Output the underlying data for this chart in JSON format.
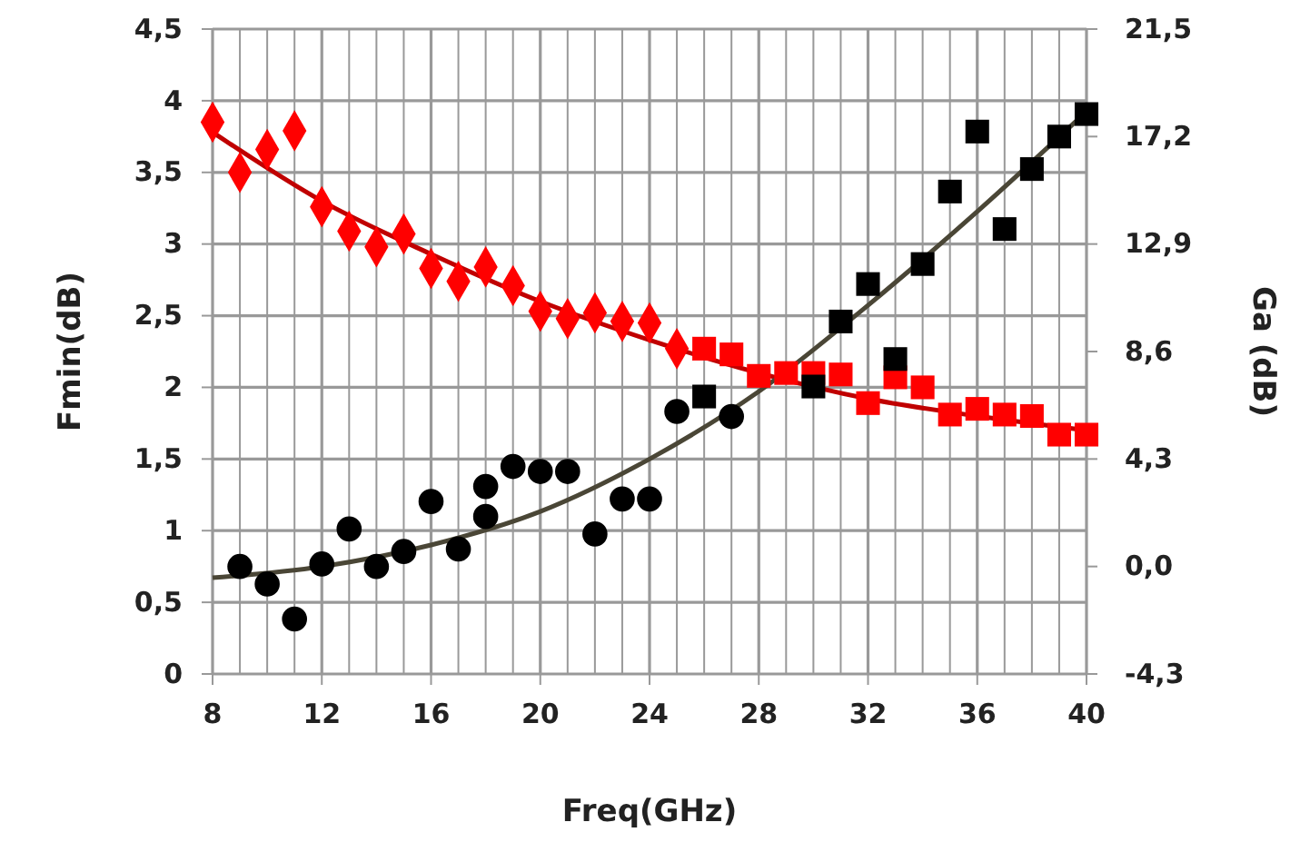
{
  "chart_data": {
    "type": "scatter",
    "xlabel": "Freq(GHz)",
    "ylabel": "Fmin(dB)",
    "y2label": "Ga (dB)",
    "xlim": [
      8,
      40
    ],
    "ylim": [
      0,
      4.5
    ],
    "y2lim": [
      -4.3,
      21.5
    ],
    "xticks": [
      8,
      {
        "value": 9,
        "label": null
      },
      {
        "value": 10,
        "label": null
      },
      {
        "value": 11,
        "label": null
      },
      12,
      {
        "value": 13,
        "label": null
      },
      {
        "value": 14,
        "label": null
      },
      {
        "value": 15,
        "label": null
      },
      16,
      {
        "value": 17,
        "label": null
      },
      {
        "value": 18,
        "label": null
      },
      {
        "value": 19,
        "label": null
      },
      20,
      {
        "value": 21,
        "label": null
      },
      {
        "value": 22,
        "label": null
      },
      {
        "value": 23,
        "label": null
      },
      24,
      {
        "value": 25,
        "label": null
      },
      {
        "value": 26,
        "label": null
      },
      {
        "value": 27,
        "label": null
      },
      28,
      {
        "value": 29,
        "label": null
      },
      {
        "value": 30,
        "label": null
      },
      {
        "value": 31,
        "label": null
      },
      32,
      {
        "value": 33,
        "label": null
      },
      {
        "value": 34,
        "label": null
      },
      {
        "value": 35,
        "label": null
      },
      36,
      {
        "value": 37,
        "label": null
      },
      {
        "value": 38,
        "label": null
      },
      {
        "value": 39,
        "label": null
      },
      40
    ],
    "yticks": [
      0,
      {
        "value": 0.5,
        "label": "0,5"
      },
      1,
      {
        "value": 1.5,
        "label": "1,5"
      },
      2,
      {
        "value": 2.5,
        "label": "2,5"
      },
      3,
      {
        "value": 3.5,
        "label": "3,5"
      },
      4,
      {
        "value": 4.5,
        "label": "4,5"
      }
    ],
    "y2ticks": [
      {
        "value": -4.3,
        "label": "-4,3"
      },
      {
        "value": 0,
        "label": "0,0"
      },
      {
        "value": 4.3,
        "label": "4,3"
      },
      {
        "value": 8.6,
        "label": "8,6"
      },
      {
        "value": 12.9,
        "label": "12,9"
      },
      {
        "value": 17.2,
        "label": "17,2"
      },
      {
        "value": 21.5,
        "label": "21,5"
      }
    ],
    "grid": true,
    "series": [
      {
        "marker": "diamond",
        "color": "#ff0000",
        "x": [
          8,
          9,
          10,
          11,
          12,
          13,
          14,
          15,
          16,
          17,
          18,
          19,
          20,
          21,
          22,
          23,
          24,
          25
        ],
        "values": [
          3.85,
          3.5,
          3.66,
          3.79,
          3.26,
          3.09,
          2.98,
          3.07,
          2.83,
          2.74,
          2.84,
          2.71,
          2.53,
          2.48,
          2.52,
          2.46,
          2.45,
          2.27
        ]
      },
      {
        "marker": "square",
        "color": "#ff0000",
        "x": [
          26,
          27,
          28,
          29,
          30,
          31,
          32,
          33,
          34,
          35,
          36,
          37,
          38,
          39,
          40
        ],
        "values": [
          2.27,
          2.23,
          2.08,
          2.1,
          2.1,
          2.09,
          1.89,
          2.07,
          2.0,
          1.81,
          1.85,
          1.81,
          1.8,
          1.67,
          1.67
        ]
      },
      {
        "type": "line",
        "color": "#c00000",
        "x": [
          8,
          12,
          16,
          20,
          24,
          28,
          32,
          36,
          40
        ],
        "values": [
          3.78,
          3.3,
          2.93,
          2.6,
          2.33,
          2.1,
          1.92,
          1.8,
          1.7
        ]
      },
      {
        "marker": "circle",
        "axis": "y2",
        "color": "#000000",
        "x": [
          9,
          10,
          11,
          12,
          13,
          14,
          15,
          16,
          17,
          18,
          18,
          19,
          20,
          21,
          22,
          23,
          24,
          25,
          27
        ],
        "values": [
          0.0,
          -0.7,
          -2.1,
          0.1,
          1.5,
          0.0,
          0.6,
          2.6,
          0.7,
          2.0,
          3.2,
          4.0,
          3.8,
          3.8,
          1.3,
          2.7,
          2.7,
          6.2,
          6.0
        ]
      },
      {
        "marker": "square",
        "axis": "y2",
        "color": "#000000",
        "x": [
          26,
          30,
          31,
          32,
          33,
          34,
          35,
          36,
          37,
          38,
          39,
          40
        ],
        "values": [
          6.8,
          7.2,
          9.8,
          11.3,
          8.3,
          12.1,
          15.0,
          17.4,
          13.5,
          15.9,
          17.2,
          18.1
        ]
      },
      {
        "type": "line",
        "axis": "y2",
        "color": "#4a4636",
        "x": [
          8,
          12,
          16,
          20,
          24,
          28,
          32,
          36,
          40
        ],
        "values": [
          -0.45,
          0.0,
          0.86,
          2.2,
          4.3,
          7.0,
          10.45,
          14.2,
          18.2
        ]
      }
    ]
  }
}
